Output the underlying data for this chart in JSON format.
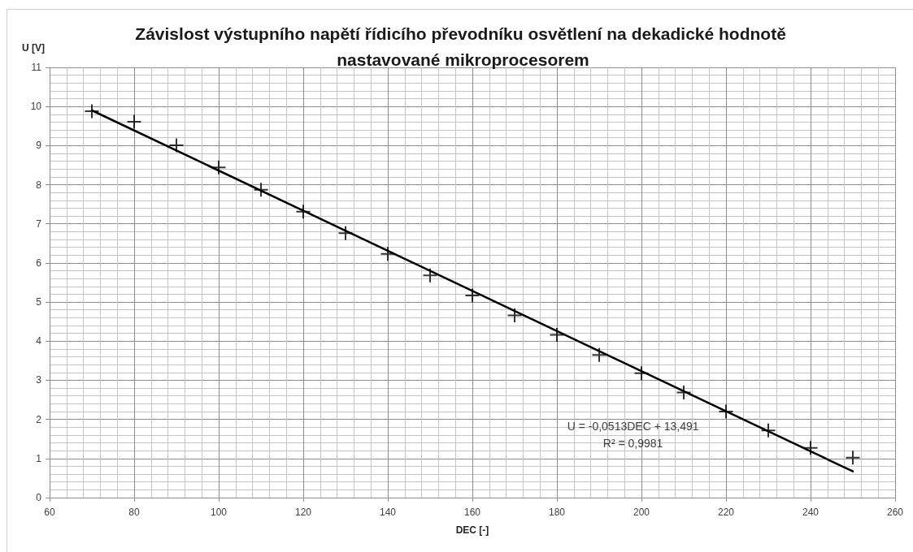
{
  "chart_data": {
    "type": "scatter",
    "title": "Závislost výstupního napětí řídicího převodníku osvětlení na dekadické hodnotě nastavované mikroprocesorem",
    "xlabel": "DEC [-]",
    "ylabel": "U [V]",
    "x": [
      70,
      80,
      90,
      100,
      110,
      120,
      130,
      140,
      150,
      160,
      170,
      180,
      190,
      200,
      210,
      220,
      230,
      240,
      250
    ],
    "series": [
      {
        "color": "#000000",
        "values": [
          9.88,
          9.61,
          9.01,
          8.44,
          7.87,
          7.31,
          6.76,
          6.23,
          5.68,
          5.17,
          4.66,
          4.16,
          3.65,
          3.18,
          2.69,
          2.2,
          1.72,
          1.27,
          1.02
        ]
      },
      {
        "type": "line",
        "color": "#000000",
        "marker": "none",
        "x": [
          70,
          250
        ],
        "values": [
          9.9,
          0.67
        ]
      }
    ],
    "xlim": [
      60,
      260
    ],
    "xticks": [
      60,
      80,
      100,
      120,
      140,
      160,
      180,
      200,
      220,
      240,
      260
    ],
    "ylim": [
      0,
      11
    ],
    "yticks": [
      0,
      1,
      2,
      3,
      4,
      5,
      6,
      7,
      8,
      9,
      10,
      11
    ],
    "grid": true,
    "marker": "cross",
    "annotations": [
      "U = -0,0513DEC + 13,491",
      "R² = 0,9981"
    ]
  }
}
